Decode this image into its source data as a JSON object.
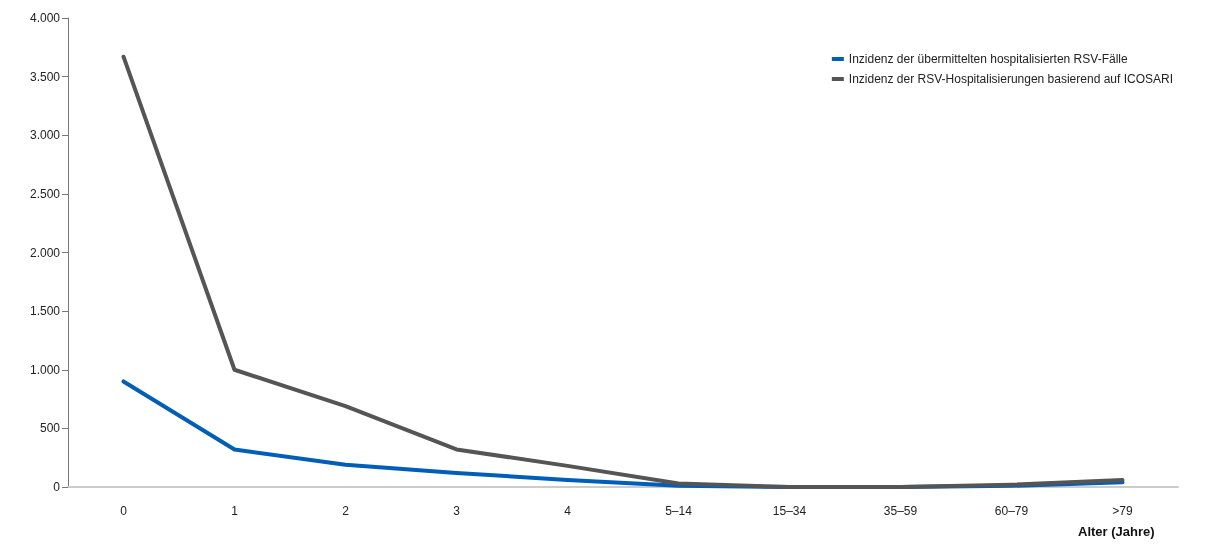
{
  "chart_data": {
    "type": "line",
    "xlabel": "Alter (Jahre)",
    "categories": [
      "0",
      "1",
      "2",
      "3",
      "4",
      "5–14",
      "15–34",
      "35–59",
      "60–79",
      ">79"
    ],
    "series": [
      {
        "name": "Inzidenz der übermittelten hospitalisierten RSV-Fälle",
        "color": "#005eb8",
        "values": [
          900,
          320,
          190,
          120,
          60,
          10,
          0,
          0,
          10,
          40
        ]
      },
      {
        "name": "Inzidenz der RSV-Hospitalisierungen basierend auf ICOSARI",
        "color": "#555555",
        "values": [
          3670,
          1000,
          690,
          320,
          180,
          30,
          0,
          0,
          20,
          60
        ]
      }
    ],
    "ylim": [
      0,
      4000
    ],
    "yticks": [
      {
        "value": 0,
        "label": "0"
      },
      {
        "value": 500,
        "label": "500"
      },
      {
        "value": 1000,
        "label": "1.000"
      },
      {
        "value": 1500,
        "label": "1.500"
      },
      {
        "value": 2000,
        "label": "2.000"
      },
      {
        "value": 2500,
        "label": "2.500"
      },
      {
        "value": 3000,
        "label": "3.000"
      },
      {
        "value": 3500,
        "label": "3.500"
      },
      {
        "value": 4000,
        "label": "4.000"
      }
    ],
    "grid": false,
    "legend": "top right",
    "marker": "none",
    "line_style": "solid"
  }
}
